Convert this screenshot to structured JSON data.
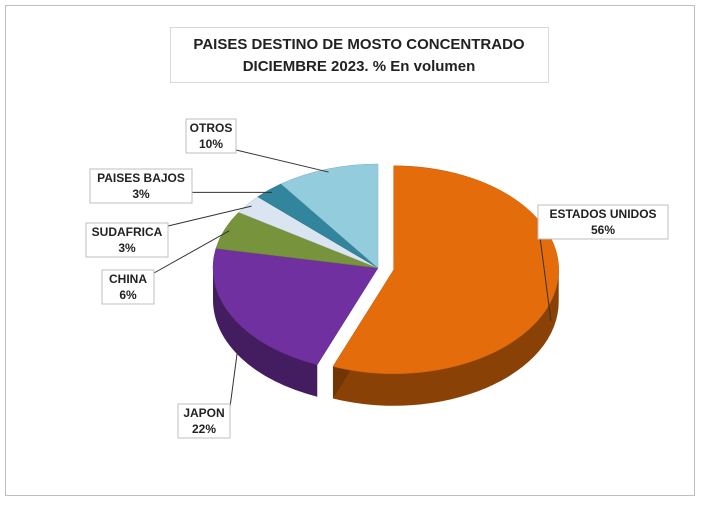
{
  "chart_data": {
    "type": "pie",
    "title": "PAISES DESTINO DE MOSTO CONCENTRADO",
    "subtitle": "DICIEMBRE 2023. % En volumen",
    "categories": [
      "ESTADOS UNIDOS",
      "JAPON",
      "CHINA",
      "SUDAFRICA",
      "PAISES BAJOS",
      "OTROS"
    ],
    "values": [
      56,
      22,
      6,
      3,
      3,
      10
    ],
    "value_labels": [
      "56%",
      "22%",
      "6%",
      "3%",
      "3%",
      "10%"
    ],
    "colors": [
      "#e46c0a",
      "#7030a0",
      "#77933c",
      "#dbe5f1",
      "#31859c",
      "#93cddd"
    ]
  }
}
